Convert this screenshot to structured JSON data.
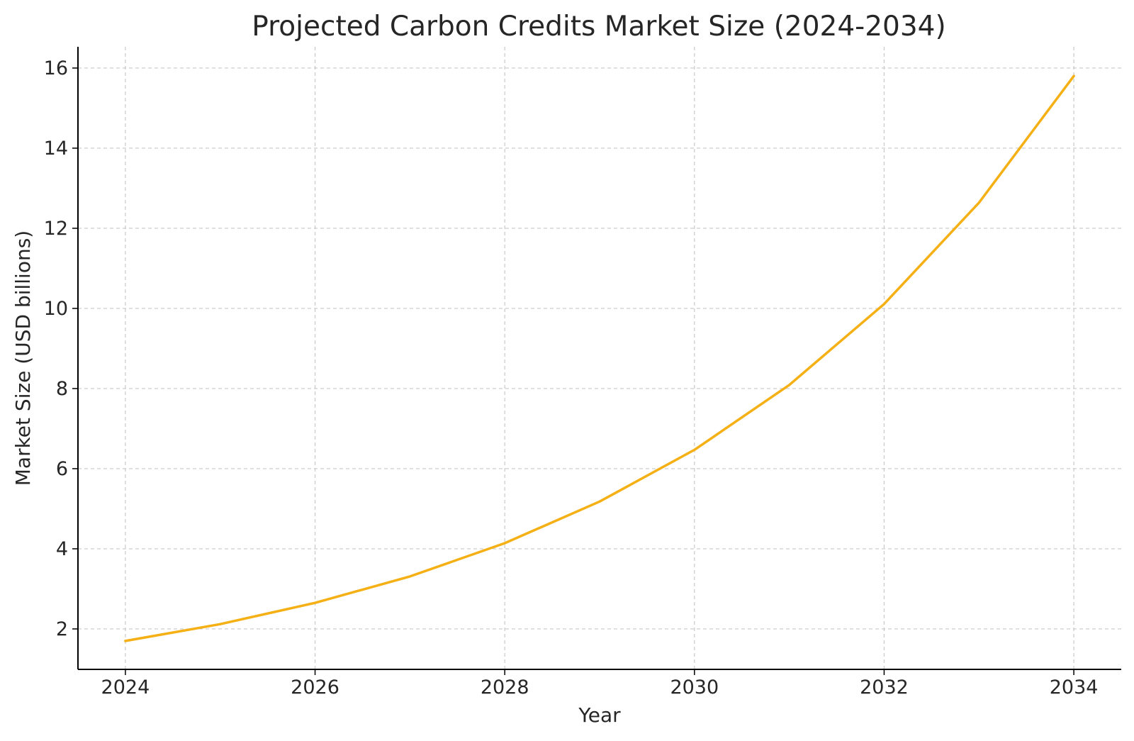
{
  "chart_data": {
    "type": "line",
    "title": "Projected Carbon Credits Market Size (2024-2034)",
    "xlabel": "Year",
    "ylabel": "Market Size (USD billions)",
    "x": [
      2024,
      2025,
      2026,
      2027,
      2028,
      2029,
      2030,
      2031,
      2032,
      2033,
      2034
    ],
    "series": [
      {
        "values": [
          1.7,
          2.12,
          2.65,
          3.31,
          4.14,
          5.18,
          6.47,
          8.09,
          10.11,
          12.64,
          15.8
        ]
      }
    ],
    "xlim": [
      2023.5,
      2034.5
    ],
    "ylim": [
      0.99,
      16.53
    ],
    "xticks": [
      2024,
      2026,
      2028,
      2030,
      2032,
      2034
    ],
    "yticks": [
      2,
      4,
      6,
      8,
      10,
      12,
      14,
      16
    ],
    "line_color": "#F4B015",
    "grid": true,
    "legend": "none"
  }
}
